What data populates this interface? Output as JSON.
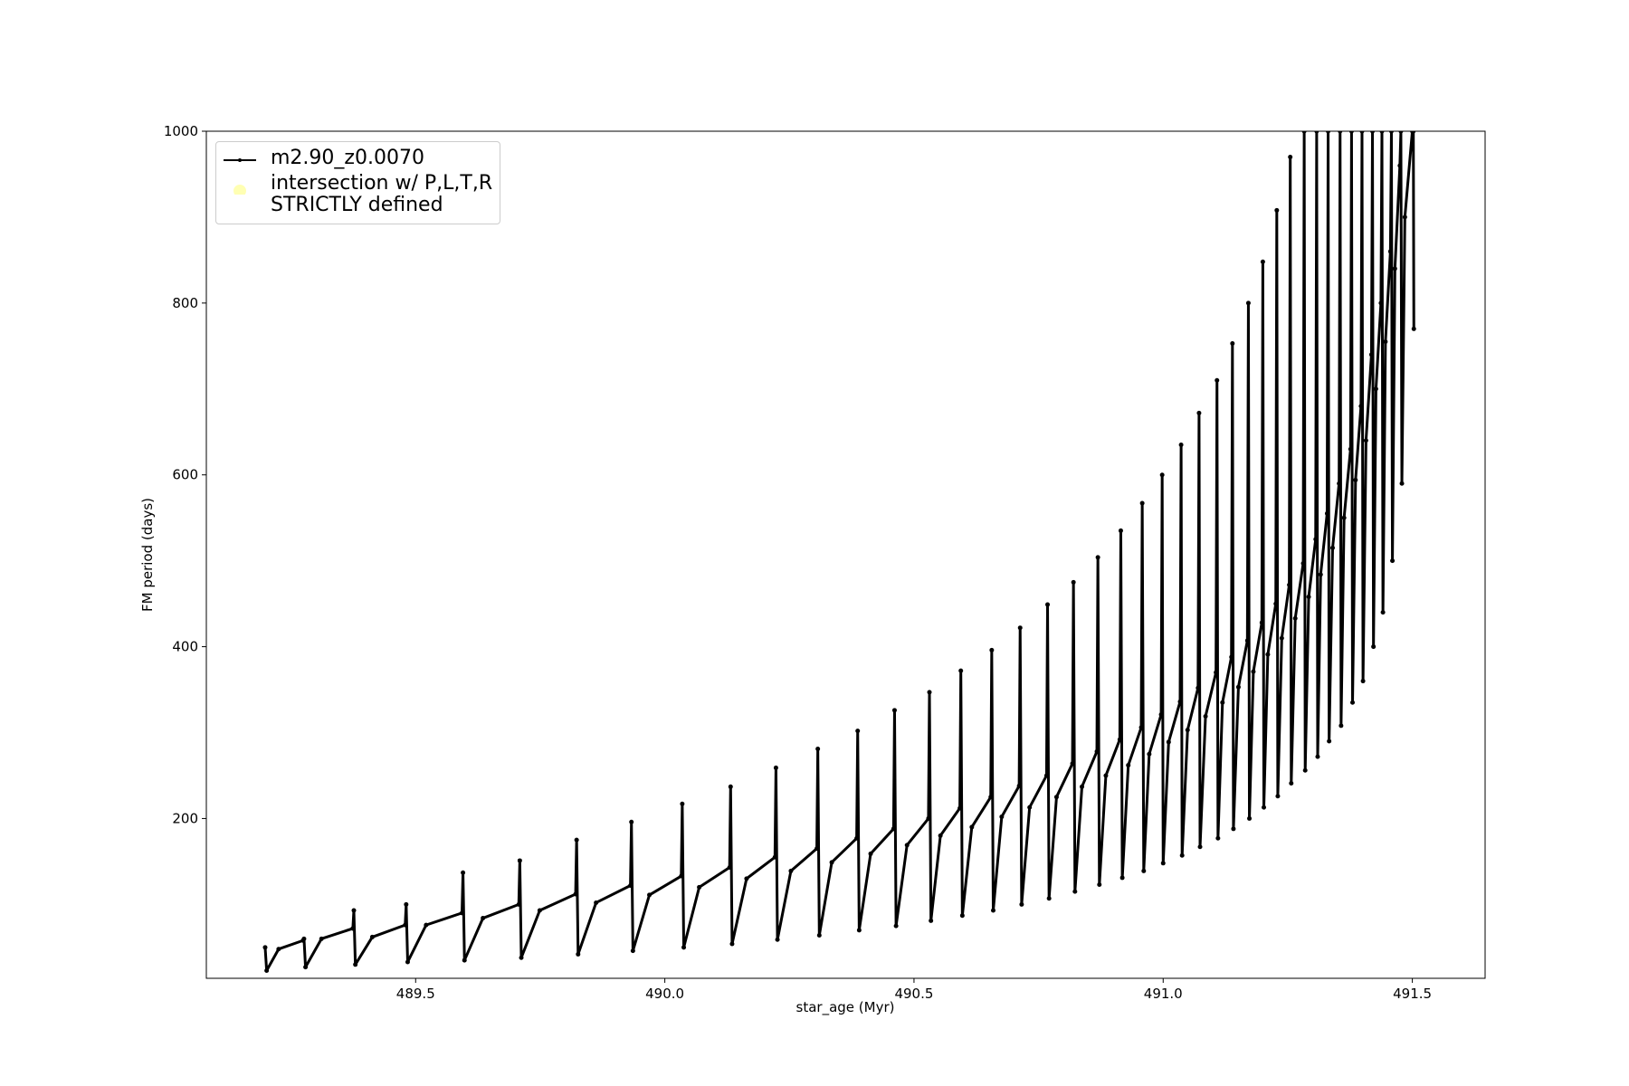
{
  "chart_data": {
    "type": "line",
    "x_label": "star_age (Myr)",
    "y_label": "FM period (days)",
    "xlim": [
      489.08,
      491.646
    ],
    "ylim": [
      14,
      1000
    ],
    "xticks": [
      489.5,
      {
        "value": 490,
        "label": "490.0"
      },
      490.5,
      {
        "value": 491,
        "label": "491.0"
      },
      491.5
    ],
    "yticks": [
      200,
      400,
      600,
      800,
      1000
    ],
    "legend": "upper left",
    "series": [
      {
        "name": "m2.90_z0.0070",
        "color": "#000000",
        "marker": true,
        "x": [
          489.198,
          489.201,
          489.225,
          489.274,
          489.276,
          489.279,
          489.311,
          489.374,
          489.376,
          489.379,
          489.413,
          489.479,
          489.481,
          489.484,
          489.521,
          489.593,
          489.595,
          489.598,
          489.635,
          489.707,
          489.709,
          489.712,
          489.749,
          489.821,
          489.823,
          489.826,
          489.862,
          489.931,
          489.933,
          489.936,
          489.969,
          490.033,
          490.035,
          490.038,
          490.069,
          490.13,
          490.132,
          490.135,
          490.164,
          490.221,
          490.223,
          490.226,
          490.253,
          490.305,
          490.307,
          490.31,
          490.335,
          490.385,
          490.387,
          490.39,
          490.413,
          490.459,
          490.461,
          490.464,
          490.486,
          490.529,
          490.531,
          490.534,
          490.553,
          490.592,
          490.594,
          490.597,
          490.616,
          490.654,
          490.656,
          490.659,
          490.676,
          490.711,
          490.713,
          490.716,
          490.732,
          490.766,
          490.768,
          490.771,
          490.786,
          490.818,
          490.82,
          490.823,
          490.837,
          490.867,
          490.869,
          490.872,
          490.885,
          490.913,
          490.915,
          490.918,
          490.93,
          490.956,
          490.958,
          490.961,
          490.972,
          490.996,
          490.998,
          491.0,
          491.011,
          491.034,
          491.036,
          491.038,
          491.049,
          491.07,
          491.072,
          491.074,
          491.085,
          491.106,
          491.108,
          491.11,
          491.119,
          491.137,
          491.139,
          491.141,
          491.151,
          491.169,
          491.171,
          491.173,
          491.181,
          491.198,
          491.2,
          491.202,
          491.21,
          491.226,
          491.228,
          491.23,
          491.238,
          491.253,
          491.255,
          491.257,
          491.265,
          491.281,
          491.283,
          491.285,
          491.292,
          491.306,
          491.308,
          491.31,
          491.316,
          491.329,
          491.331,
          491.333,
          491.34,
          491.353,
          491.355,
          491.357,
          491.363,
          491.376,
          491.378,
          491.38,
          491.386,
          491.397,
          491.399,
          491.401,
          491.407,
          491.418,
          491.42,
          491.422,
          491.427,
          491.437,
          491.439,
          491.441,
          491.446,
          491.456,
          491.458,
          491.46,
          491.465,
          491.475,
          491.477,
          491.479,
          491.485,
          491.5,
          491.502,
          491.503
        ],
        "values": [
          50,
          23,
          48,
          58,
          60,
          27,
          60,
          72,
          93,
          30,
          62,
          76,
          100,
          33,
          76,
          90,
          137,
          35,
          84,
          100,
          151,
          38,
          93,
          112,
          175,
          42,
          102,
          122,
          196,
          46,
          111,
          133,
          217,
          50,
          120,
          143,
          237,
          54,
          130,
          155,
          259,
          59,
          139,
          165,
          281,
          64,
          149,
          177,
          302,
          70,
          159,
          188,
          326,
          75,
          169,
          200,
          347,
          81,
          180,
          212,
          372,
          87,
          190,
          225,
          396,
          93,
          202,
          238,
          422,
          100,
          213,
          250,
          449,
          107,
          225,
          264,
          475,
          115,
          237,
          278,
          504,
          123,
          250,
          292,
          535,
          131,
          262,
          306,
          567,
          139,
          275,
          321,
          600,
          148,
          289,
          336,
          635,
          157,
          303,
          352,
          672,
          167,
          319,
          370,
          710,
          177,
          335,
          388,
          753,
          188,
          353,
          407,
          800,
          200,
          371,
          428,
          848,
          213,
          391,
          450,
          908,
          226,
          410,
          472,
          970,
          241,
          433,
          497,
          1000,
          256,
          458,
          525,
          1000,
          272,
          484,
          555,
          1000,
          290,
          515,
          590,
          1000,
          308,
          550,
          630,
          1000,
          335,
          594,
          680,
          1000,
          360,
          640,
          740,
          1000,
          400,
          700,
          800,
          1000,
          440,
          755,
          860,
          1000,
          500,
          840,
          960,
          1000,
          590,
          900,
          1000,
          1000,
          770
        ]
      },
      {
        "name": "intersection w/ P,L,T,R\nSTRICTLY defined",
        "color": "#ffffb3",
        "type": "scatter",
        "x": [],
        "values": []
      }
    ]
  }
}
